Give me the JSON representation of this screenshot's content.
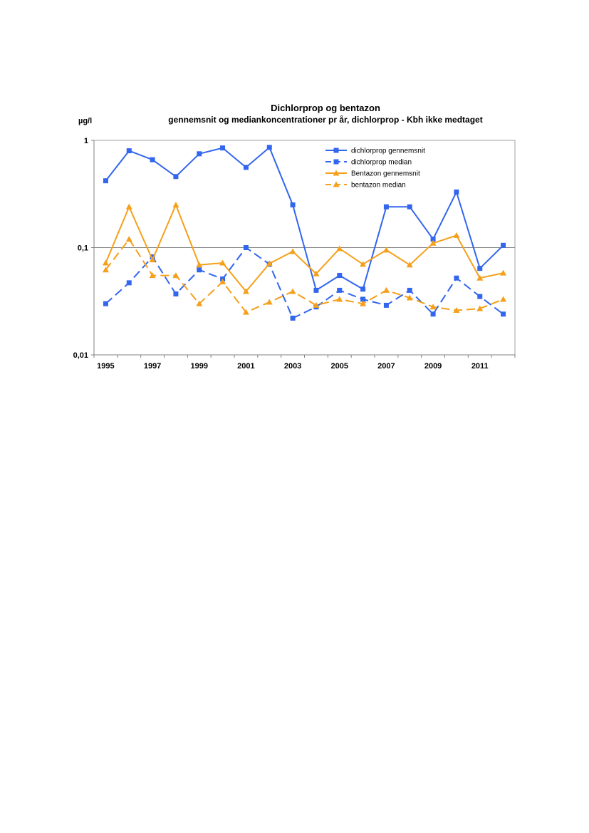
{
  "chart_data": {
    "type": "line",
    "title": "Dichlorprop og bentazon",
    "subtitle": "gennemsnit og mediankoncentrationer pr år, dichlorprop - Kbh ikke medtaget",
    "ylabel": "µg/l",
    "xlabel": "",
    "yscale": "log",
    "ylim": [
      0.01,
      1
    ],
    "yticks": [
      {
        "value": 1,
        "label": "1"
      },
      {
        "value": 0.1,
        "label": "0,1"
      },
      {
        "value": 0.01,
        "label": "0,01"
      }
    ],
    "xlim": [
      1995,
      2012
    ],
    "xticks": [
      1995,
      1997,
      1999,
      2001,
      2003,
      2005,
      2007,
      2009,
      2011
    ],
    "xtick_labels": [
      "1995",
      "1997",
      "1999",
      "2001",
      "2003",
      "2005",
      "2007",
      "2009",
      "2011"
    ],
    "gridlines": "y-major",
    "legend_position": "top-right",
    "x": [
      1995,
      1996,
      1997,
      1998,
      1999,
      2000,
      2001,
      2002,
      2003,
      2004,
      2005,
      2006,
      2007,
      2008,
      2009,
      2010,
      2011,
      2012
    ],
    "series": [
      {
        "name": "dichlorprop gennemsnit",
        "color": "#3366ee",
        "dash": "solid",
        "marker": "square",
        "values": [
          0.42,
          0.8,
          0.66,
          0.46,
          0.75,
          0.85,
          0.56,
          0.86,
          0.25,
          0.04,
          0.055,
          0.041,
          0.24,
          0.24,
          0.12,
          0.33,
          0.064,
          0.105
        ]
      },
      {
        "name": "dichlorprop median",
        "color": "#3366ee",
        "dash": "dashed",
        "marker": "square",
        "values": [
          0.03,
          0.047,
          0.082,
          0.037,
          0.062,
          0.051,
          0.1,
          0.07,
          0.022,
          0.028,
          0.04,
          0.033,
          0.029,
          0.04,
          0.024,
          0.052,
          0.035,
          0.024
        ]
      },
      {
        "name": "Bentazon gennemsnit",
        "color": "#f5a01a",
        "dash": "solid",
        "marker": "triangle",
        "values": [
          0.072,
          0.24,
          0.077,
          0.25,
          0.069,
          0.072,
          0.039,
          0.071,
          0.092,
          0.057,
          0.098,
          0.07,
          0.095,
          0.069,
          0.11,
          0.13,
          0.052,
          0.058
        ]
      },
      {
        "name": "bentazon median",
        "color": "#f5a01a",
        "dash": "dashed",
        "marker": "triangle",
        "values": [
          0.062,
          0.12,
          0.055,
          0.055,
          0.03,
          0.048,
          0.025,
          0.031,
          0.039,
          0.029,
          0.033,
          0.03,
          0.04,
          0.034,
          0.028,
          0.026,
          0.027,
          0.033
        ]
      }
    ]
  }
}
